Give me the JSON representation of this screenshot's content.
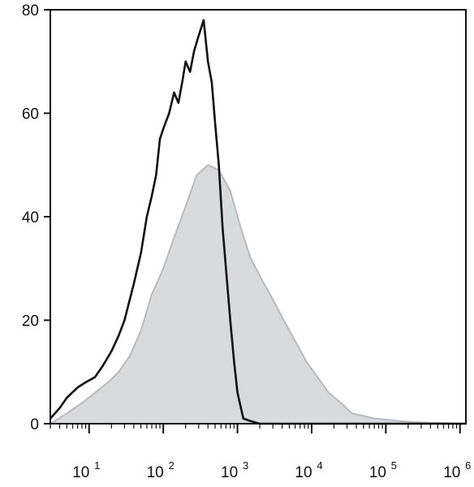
{
  "chart_data": {
    "type": "area",
    "title": "",
    "xlabel": "",
    "ylabel": "",
    "x_scale": "log",
    "xlim": [
      3.0,
      1200000
    ],
    "ylim": [
      0,
      80
    ],
    "grid": false,
    "legend": "none",
    "y_ticks": [
      {
        "value": 0,
        "label": "0"
      },
      {
        "value": 20,
        "label": "20"
      },
      {
        "value": 40,
        "label": "40"
      },
      {
        "value": 60,
        "label": "60"
      },
      {
        "value": 80,
        "label": "80"
      }
    ],
    "x_ticks": [
      {
        "value": 10,
        "base": "10",
        "exp": "1"
      },
      {
        "value": 100,
        "base": "10",
        "exp": "2"
      },
      {
        "value": 1000,
        "base": "10",
        "exp": "3"
      },
      {
        "value": 10000,
        "base": "10",
        "exp": "4"
      },
      {
        "value": 100000,
        "base": "10",
        "exp": "5"
      },
      {
        "value": 1000000,
        "base": "10",
        "exp": "6"
      }
    ],
    "series": [
      {
        "style": "filled",
        "fill_color": "#d8dbdc",
        "line_color": "#b7bbbd",
        "x": [
          3,
          5,
          8,
          12,
          18,
          25,
          35,
          50,
          70,
          100,
          140,
          200,
          280,
          400,
          560,
          800,
          1100,
          1500,
          2100,
          3000,
          4200,
          6000,
          8500,
          12000,
          17000,
          25000,
          35000,
          50000,
          70000,
          100000,
          150000,
          250000,
          400000,
          700000,
          1200000
        ],
        "y": [
          0,
          2,
          4,
          6,
          8,
          10,
          13,
          18,
          25,
          30,
          36,
          42,
          48,
          50,
          49,
          45,
          38,
          32,
          28,
          24,
          20,
          16,
          12,
          9,
          6,
          4,
          2,
          1.5,
          1,
          0.8,
          0.5,
          0.3,
          0.2,
          0.1,
          0
        ]
      },
      {
        "style": "line",
        "line_color": "#111111",
        "x": [
          3,
          4,
          5,
          7,
          9,
          12,
          15,
          20,
          25,
          30,
          40,
          50,
          60,
          70,
          80,
          90,
          100,
          120,
          140,
          160,
          180,
          200,
          230,
          260,
          300,
          350,
          400,
          450,
          500,
          560,
          630,
          700,
          800,
          900,
          1000,
          1200,
          1500,
          2000,
          3000,
          5000,
          10000,
          100000,
          1200000
        ],
        "y": [
          1,
          3,
          5,
          7,
          8,
          9,
          11,
          14,
          17,
          20,
          27,
          33,
          40,
          44,
          48,
          55,
          57,
          60,
          64,
          62,
          66,
          70,
          68,
          72,
          75,
          78,
          70,
          66,
          58,
          50,
          38,
          30,
          20,
          12,
          6,
          1,
          0.5,
          0,
          0,
          0,
          0,
          0,
          0
        ]
      }
    ]
  }
}
